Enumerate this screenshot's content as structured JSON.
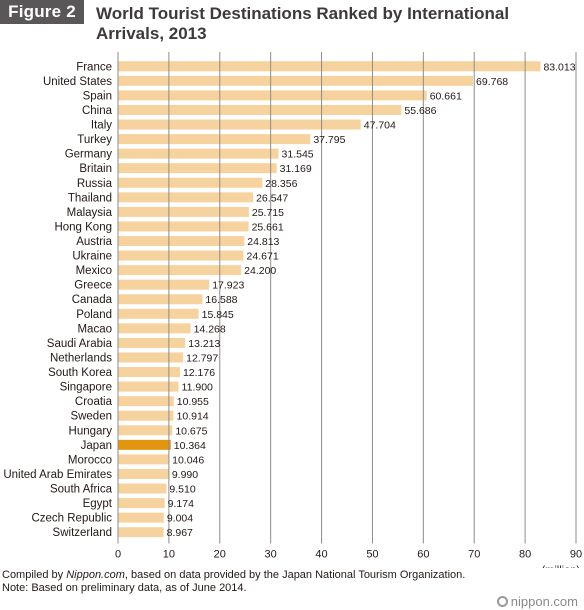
{
  "figure_label": "Figure 2",
  "title": "World Tourist Destinations Ranked by International Arrivals, 2013",
  "footer": {
    "source_prefix": "Compiled by ",
    "source_brand": "Nippon.com",
    "source_suffix": ", based on data provided by the Japan National Tourism Organization.",
    "note": "Note: Based on preliminary data, as of June 2014."
  },
  "logo_text": "nippon.com",
  "colors": {
    "bar": "#f6d39e",
    "highlight": "#e2950f",
    "grid": "#8c8c8c",
    "text": "#231815"
  },
  "chart_data": {
    "type": "bar",
    "orientation": "horizontal",
    "xlabel": "(million)",
    "xlim": [
      0,
      90
    ],
    "xticks": [
      0,
      10,
      20,
      30,
      40,
      50,
      60,
      70,
      80,
      90
    ],
    "grid": true,
    "highlight": "Japan",
    "categories": [
      "France",
      "United States",
      "Spain",
      "China",
      "Italy",
      "Turkey",
      "Germany",
      "Britain",
      "Russia",
      "Thailand",
      "Malaysia",
      "Hong Kong",
      "Austria",
      "Ukraine",
      "Mexico",
      "Greece",
      "Canada",
      "Poland",
      "Macao",
      "Saudi Arabia",
      "Netherlands",
      "South Korea",
      "Singapore",
      "Croatia",
      "Sweden",
      "Hungary",
      "Japan",
      "Morocco",
      "United Arab Emirates",
      "South Africa",
      "Egypt",
      "Czech Republic",
      "Switzerland"
    ],
    "values": [
      83.013,
      69.768,
      60.661,
      55.686,
      47.704,
      37.795,
      31.545,
      31.169,
      28.356,
      26.547,
      25.715,
      25.661,
      24.813,
      24.671,
      24.2,
      17.923,
      16.588,
      15.845,
      14.268,
      13.213,
      12.797,
      12.176,
      11.9,
      10.955,
      10.914,
      10.675,
      10.364,
      10.046,
      9.99,
      9.51,
      9.174,
      9.004,
      8.967
    ],
    "value_labels": [
      "83.013",
      "69.768",
      "60.661",
      "55.686",
      "47.704",
      "37.795",
      "31.545",
      "31.169",
      "28.356",
      "26.547",
      "25.715",
      "25.661",
      "24.813",
      "24.671",
      "24.200",
      "17.923",
      "16.588",
      "15.845",
      "14.268",
      "13.213",
      "12.797",
      "12.176",
      "11.900",
      "10.955",
      "10.914",
      "10.675",
      "10.364",
      "10.046",
      "9.990",
      "9.510",
      "9.174",
      "9.004",
      "8.967"
    ]
  }
}
